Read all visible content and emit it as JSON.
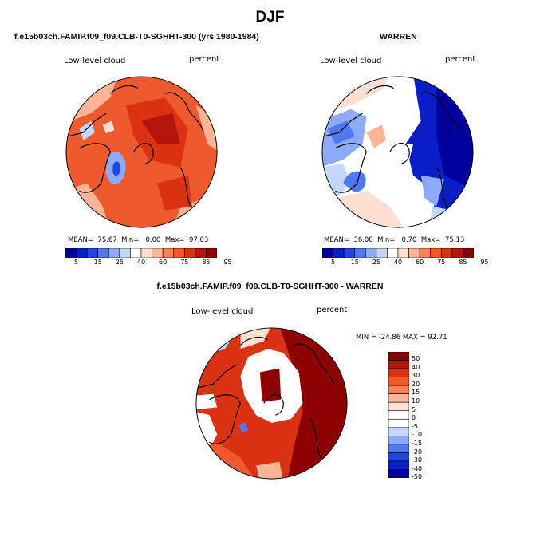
{
  "title": "DJF",
  "panels": [
    {
      "id": "model",
      "title": "f.e15b03ch.FAMIP.f09_f09.CLB-T0-SGHHT-300 (yrs 1980-1984)",
      "variable": "Low-level cloud",
      "units": "percent",
      "stats": {
        "mean_label": "MEAN=",
        "mean": "75.67",
        "min_label": "Min=",
        "min": "0.00",
        "max_label": "Max=",
        "max": "97.03"
      }
    },
    {
      "id": "obs",
      "title": "WARREN",
      "variable": "Low-level cloud",
      "units": "percent",
      "stats": {
        "mean_label": "MEAN=",
        "mean": "36.08",
        "min_label": "Min=",
        "min": "0.70",
        "max_label": "Max=",
        "max": "75.13"
      }
    },
    {
      "id": "diff",
      "title": "f.e15b03ch.FAMIP.f09_f09.CLB-T0-SGHHT-300 - WARREN",
      "variable": "Low-level cloud",
      "units": "percent",
      "minmax_text": "MIN = -24.86 MAX = 92.71"
    }
  ],
  "colorbar_abs": {
    "ticks": [
      "5",
      "15",
      "25",
      "40",
      "60",
      "75",
      "85",
      "95"
    ],
    "colors": [
      "#00009c",
      "#0a1ec8",
      "#1e46e6",
      "#5078f0",
      "#8caaf5",
      "#c3d7fa",
      "#ffffff",
      "#fde0d2",
      "#fbb496",
      "#f5825a",
      "#ee5a2d",
      "#dc3214",
      "#b4140a",
      "#8c0000"
    ]
  },
  "colorbar_diff": {
    "ticks": [
      "50",
      "40",
      "30",
      "20",
      "15",
      "10",
      "5",
      "0",
      "-5",
      "-10",
      "-15",
      "-20",
      "-30",
      "-40",
      "-50"
    ],
    "colors": [
      "#8c0000",
      "#b4140a",
      "#dc3214",
      "#ee5a2d",
      "#f5825a",
      "#fbb496",
      "#fde0d2",
      "#ffffff",
      "#ffffff",
      "#c3d7fa",
      "#8caaf5",
      "#5078f0",
      "#1e46e6",
      "#0a1ec8",
      "#00009c"
    ]
  }
}
